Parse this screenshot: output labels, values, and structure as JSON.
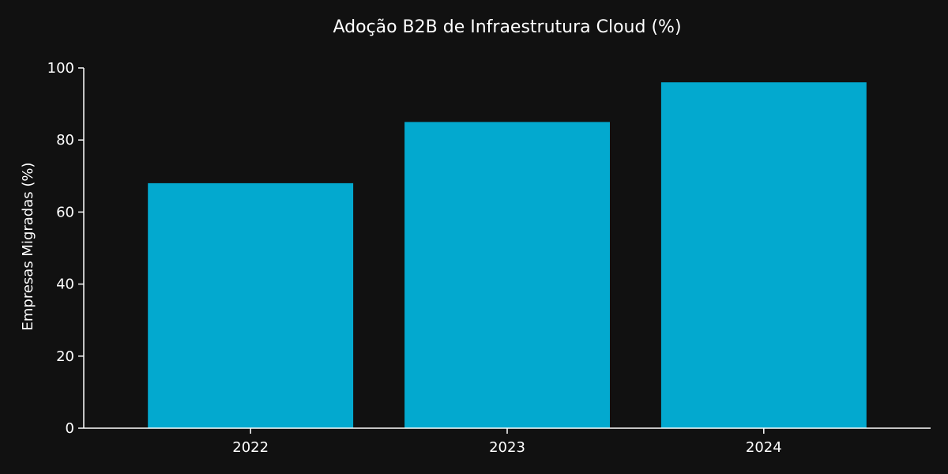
{
  "chart_data": {
    "type": "bar",
    "title": "Adoção B2B de Infraestrutura Cloud (%)",
    "xlabel": "",
    "ylabel": "Empresas Migradas (%)",
    "categories": [
      "2022",
      "2023",
      "2024"
    ],
    "values": [
      68,
      85,
      96
    ],
    "ylim": [
      0,
      100
    ],
    "yticks": [
      0,
      20,
      40,
      60,
      80,
      100
    ],
    "grid": false,
    "legend": "none",
    "colors": {
      "background": "#111111",
      "bar": "#03a9cf",
      "text": "#ffffff",
      "axis": "#ffffff"
    }
  }
}
